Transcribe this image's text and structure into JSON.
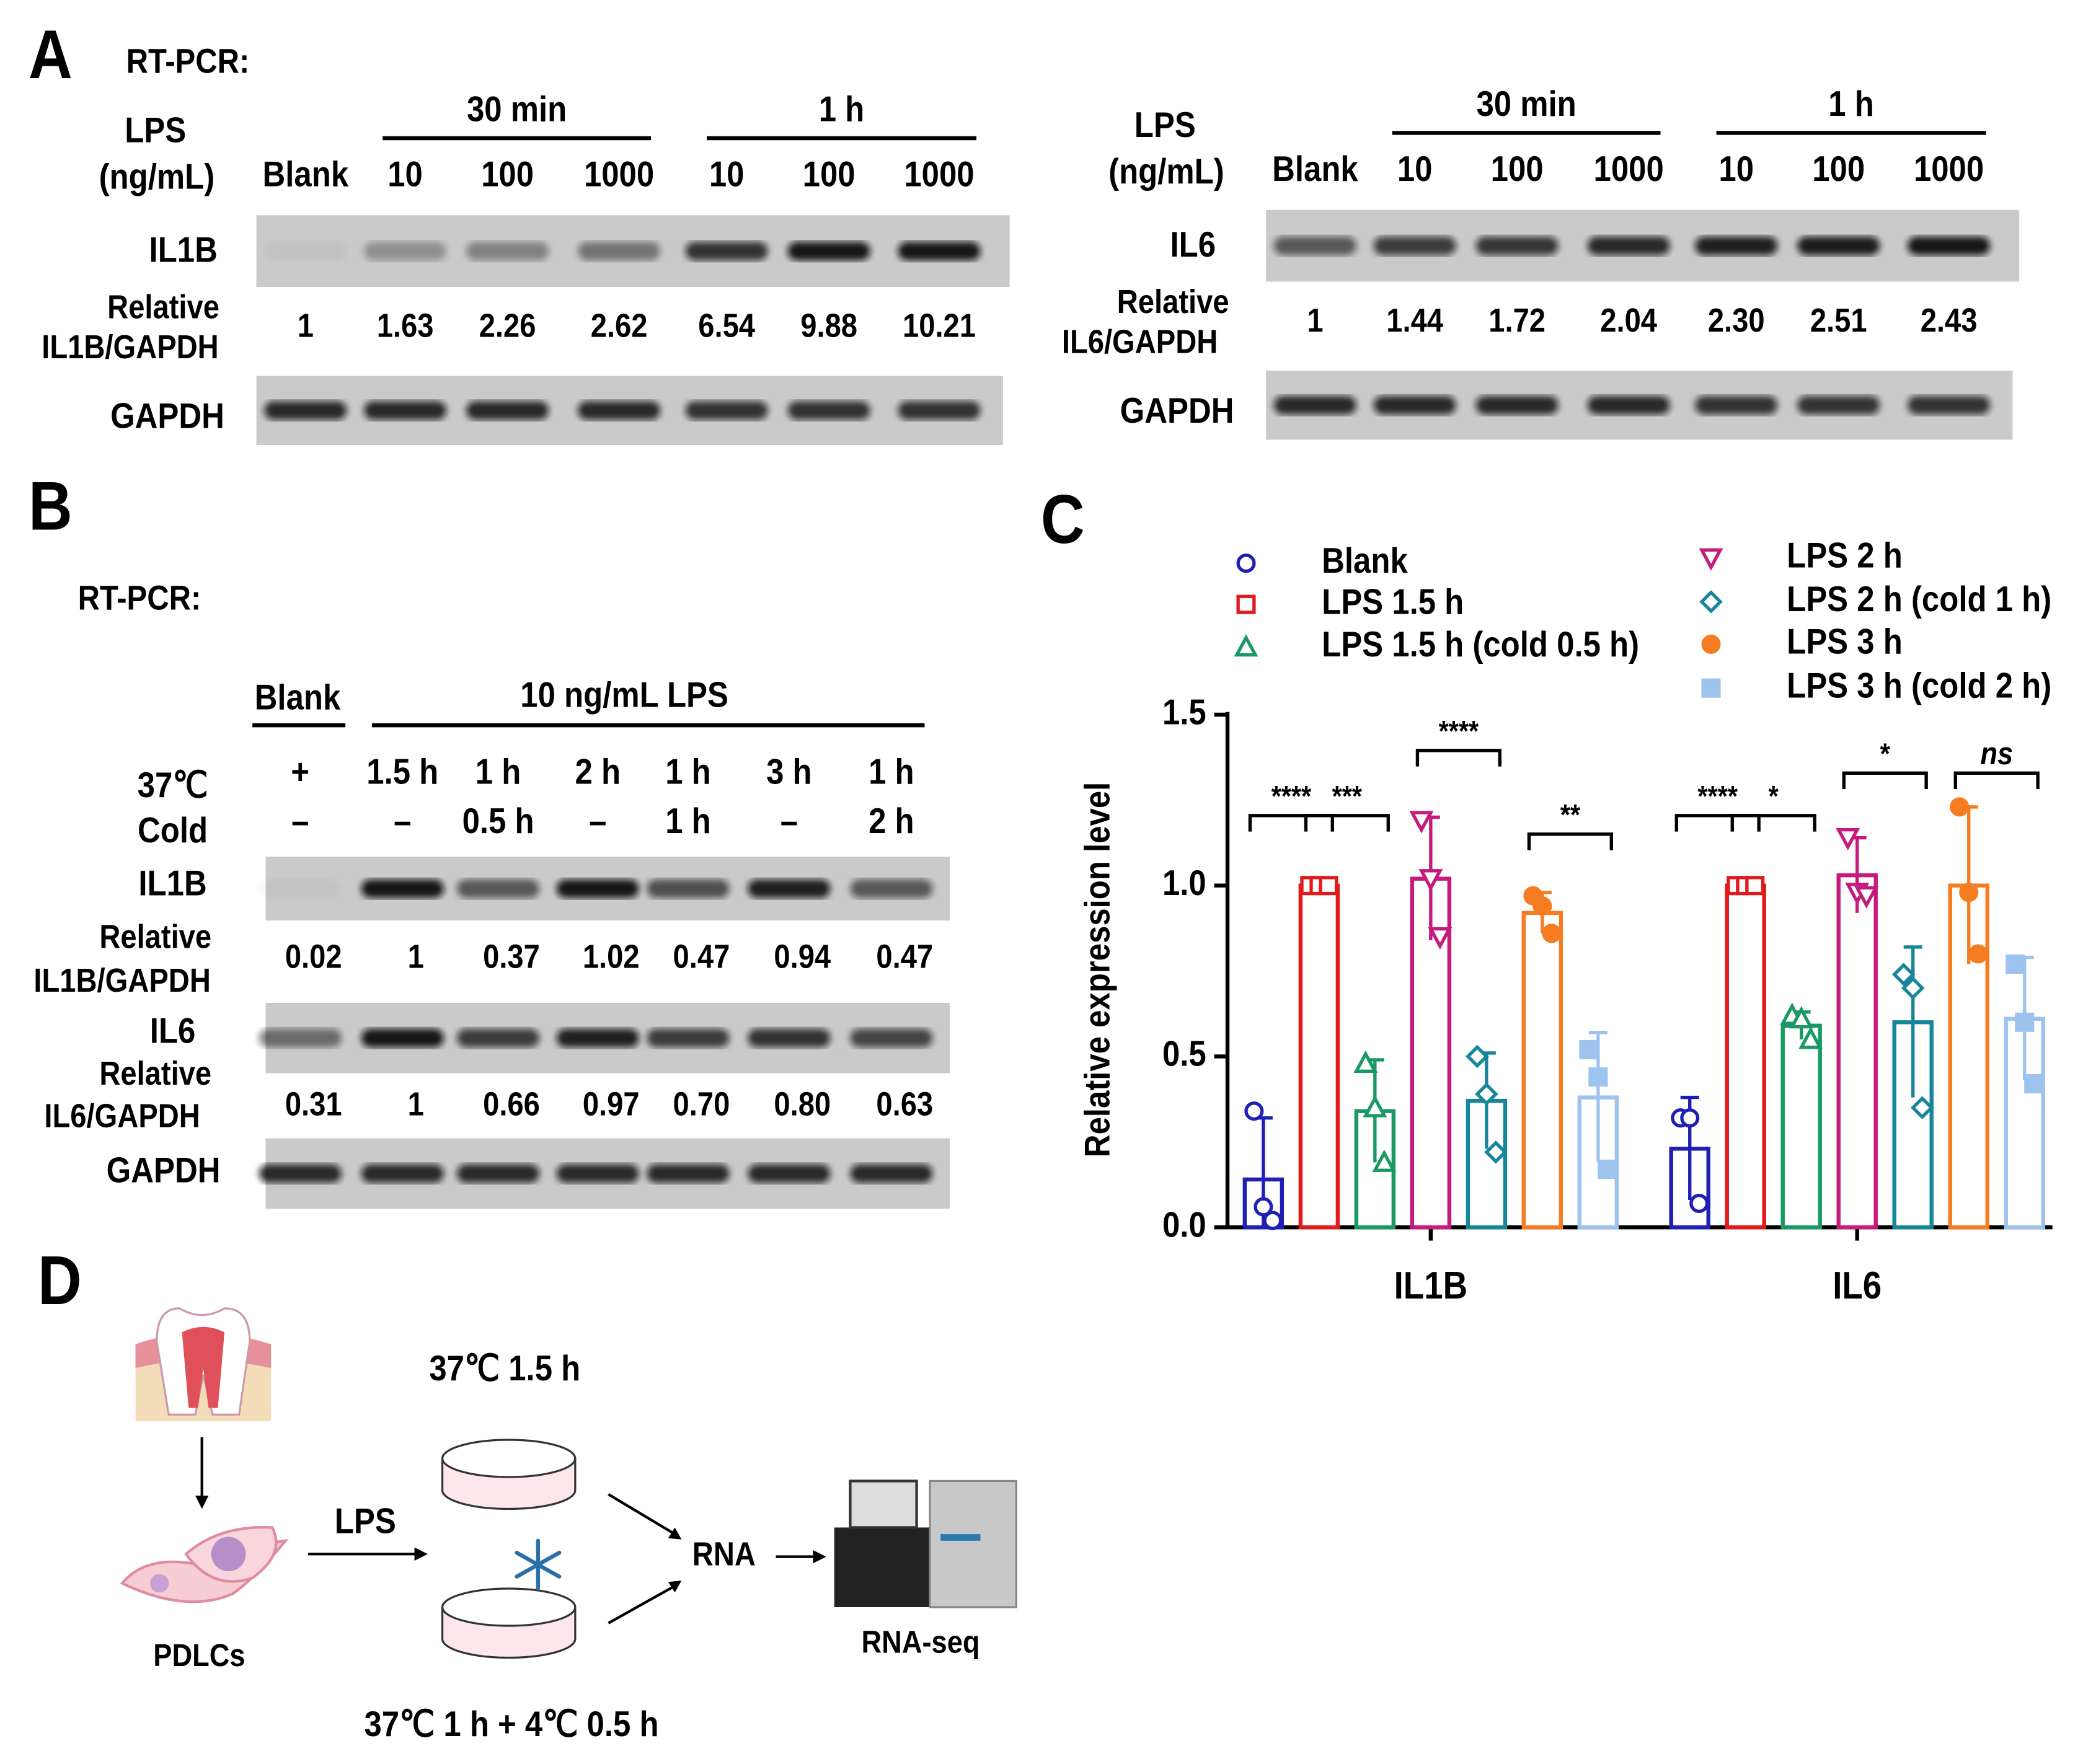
{
  "panel_labels": [
    "A",
    "B",
    "C",
    "D"
  ],
  "panel_a": {
    "method": "RT-PCR:",
    "blots": [
      {
        "treatment": [
          "LPS",
          "(ng/mL)"
        ],
        "groups": [
          "30 min",
          "1 h"
        ],
        "lanes": [
          "Blank",
          "10",
          "100",
          "1000",
          "10",
          "100",
          "1000"
        ],
        "target": "IL1B",
        "relative_label": [
          "Relative",
          "IL1B/GAPDH"
        ],
        "relative": [
          "1",
          "1.63",
          "2.26",
          "2.62",
          "6.54",
          "9.88",
          "10.21"
        ],
        "control": "GAPDH"
      },
      {
        "treatment": [
          "LPS",
          "(ng/mL)"
        ],
        "groups": [
          "30 min",
          "1 h"
        ],
        "lanes": [
          "Blank",
          "10",
          "100",
          "1000",
          "10",
          "100",
          "1000"
        ],
        "target": "IL6",
        "relative_label": [
          "Relative",
          "IL6/GAPDH"
        ],
        "relative": [
          "1",
          "1.44",
          "1.72",
          "2.04",
          "2.30",
          "2.51",
          "2.43"
        ],
        "control": "GAPDH"
      }
    ]
  },
  "panel_b": {
    "method": "RT-PCR:",
    "blank": "Blank",
    "treatment": "10 ng/mL LPS",
    "rows": [
      {
        "label": "37℃",
        "lanes": [
          "+",
          "1.5 h",
          "1 h",
          "2 h",
          "1 h",
          "3 h",
          "1 h"
        ]
      },
      {
        "label": "Cold",
        "lanes": [
          "–",
          "–",
          "0.5 h",
          "–",
          "1 h",
          "–",
          "2 h"
        ]
      }
    ],
    "genes": [
      {
        "target": "IL1B",
        "relative_label": [
          "Relative",
          "IL1B/GAPDH"
        ],
        "relative": [
          "0.02",
          "1",
          "0.37",
          "1.02",
          "0.47",
          "0.94",
          "0.47"
        ]
      },
      {
        "target": "IL6",
        "relative_label": [
          "Relative",
          "IL6/GAPDH"
        ],
        "relative": [
          "0.31",
          "1",
          "0.66",
          "0.97",
          "0.70",
          "0.80",
          "0.63"
        ]
      }
    ],
    "control": "GAPDH"
  },
  "chart_data": {
    "type": "bar",
    "categories": [
      "IL1B",
      "IL6"
    ],
    "ylabel": "Relative expression level",
    "ylim": [
      0,
      1.5
    ],
    "yticks": [
      {
        "value": 0,
        "label": "0.0"
      },
      {
        "value": 0.5,
        "label": "0.5"
      },
      {
        "value": 1,
        "label": "1.0"
      },
      {
        "value": 1.5,
        "label": "1.5"
      }
    ],
    "legend": "top",
    "series": [
      {
        "name": "Blank",
        "color": "#1f1fb4",
        "values": [
          0.14,
          0.23
        ],
        "errors": [
          0.18,
          0.15
        ],
        "points": [
          [
            0.34,
            0.06,
            0.02
          ],
          [
            0.32,
            0.32,
            0.07
          ]
        ]
      },
      {
        "name": "LPS 1.5 h",
        "color": "#e31a1c",
        "values": [
          1,
          1
        ],
        "errors": [
          0.01,
          0.01
        ],
        "points": [
          [
            1,
            1,
            1
          ],
          [
            1,
            1,
            1
          ]
        ]
      },
      {
        "name": "LPS 1.5 h (cold 0.5 h)",
        "color": "#1a9a62",
        "values": [
          0.34,
          0.59
        ],
        "errors": [
          0.15,
          0.04
        ],
        "points": [
          [
            0.48,
            0.35,
            0.19
          ],
          [
            0.62,
            0.61,
            0.55
          ]
        ]
      },
      {
        "name": "LPS 2 h",
        "color": "#c51b7d",
        "values": [
          1.02,
          1.03
        ],
        "errors": [
          0.18,
          0.11
        ],
        "points": [
          [
            1.19,
            1.02,
            0.85
          ],
          [
            1.14,
            0.98,
            0.97
          ]
        ]
      },
      {
        "name": "LPS 2 h (cold 1 h)",
        "color": "#17869a",
        "values": [
          0.37,
          0.6
        ],
        "errors": [
          0.14,
          0.22
        ],
        "points": [
          [
            0.5,
            0.39,
            0.22
          ],
          [
            0.74,
            0.7,
            0.35
          ]
        ]
      },
      {
        "name": "LPS 3 h",
        "color": "#f57c20",
        "values": [
          0.92,
          1
        ],
        "errors": [
          0.06,
          0.23
        ],
        "points": [
          [
            0.97,
            0.94,
            0.86
          ],
          [
            1.23,
            0.98,
            0.8
          ]
        ]
      },
      {
        "name": "LPS 3 h (cold 2 h)",
        "color": "#9dc3ee",
        "values": [
          0.38,
          0.61
        ],
        "errors": [
          0.19,
          0.18
        ],
        "points": [
          [
            0.52,
            0.44,
            0.17
          ],
          [
            0.77,
            0.6,
            0.42
          ]
        ]
      }
    ],
    "annotations": [
      "****",
      "***",
      "****",
      "**",
      "****",
      "*",
      "*",
      "ns"
    ]
  },
  "panel_d": {
    "source": "PDLCs",
    "treatment": "LPS",
    "condition_top": "37℃ 1.5 h",
    "condition_bottom": "37℃ 1 h + 4℃ 0.5 h",
    "product": "RNA",
    "method": "RNA-seq"
  }
}
